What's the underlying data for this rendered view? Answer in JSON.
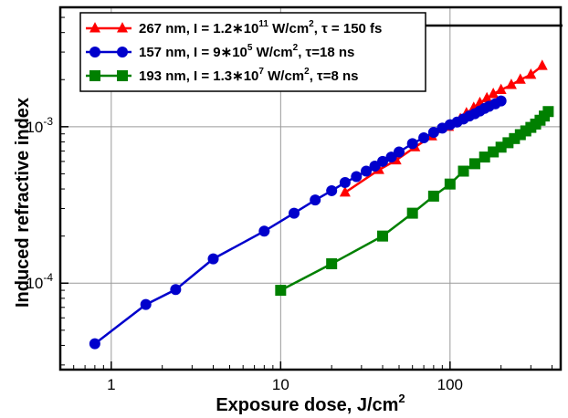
{
  "chart_data": {
    "type": "line",
    "x_scale": "log",
    "y_scale": "log",
    "xlim": [
      0.5,
      450
    ],
    "ylim": [
      2.8e-05,
      0.0058
    ],
    "grid": true,
    "legend_placement": "top",
    "xlabel_main": "Exposure dose, J/cm",
    "xlabel_sup": "2",
    "ylabel": "Induced refractive index",
    "x_ticks": [
      {
        "value": 1,
        "label": "1"
      },
      {
        "value": 10,
        "label": "10"
      },
      {
        "value": 100,
        "label": "100"
      }
    ],
    "y_ticks": [
      {
        "value": 0.0001,
        "base": "10",
        "exp": "-4"
      },
      {
        "value": 0.001,
        "base": "10",
        "exp": "-3"
      }
    ],
    "series": [
      {
        "color": "#ff0000",
        "marker": "triangle",
        "legend_parts": [
          "267 nm, I = 1.2∗10",
          "11",
          " W/cm",
          "2",
          ", τ = 150 fs"
        ],
        "x": [
          24,
          38,
          48,
          62,
          78,
          98,
          115,
          125,
          138,
          150,
          165,
          180,
          200,
          230,
          260,
          300,
          350
        ],
        "y": [
          0.00038,
          0.00053,
          0.00061,
          0.00074,
          0.00087,
          0.001,
          0.00112,
          0.00122,
          0.00132,
          0.00142,
          0.00152,
          0.00162,
          0.00172,
          0.00185,
          0.002,
          0.00215,
          0.00245
        ]
      },
      {
        "color": "#0000cc",
        "marker": "circle",
        "legend_parts": [
          "157 nm, I = 9∗10",
          "5",
          " W/cm",
          "2",
          ", τ=18 ns"
        ],
        "x": [
          0.8,
          1.6,
          2.4,
          4,
          8,
          12,
          16,
          20,
          24,
          28,
          32,
          36,
          40,
          45,
          50,
          60,
          70,
          80,
          90,
          100,
          110,
          120,
          130,
          140,
          150,
          160,
          170,
          185,
          200
        ],
        "y": [
          4.1e-05,
          7.3e-05,
          9.1e-05,
          0.000143,
          0.000215,
          0.00028,
          0.00034,
          0.00039,
          0.00044,
          0.00048,
          0.00052,
          0.00056,
          0.0006,
          0.00064,
          0.00069,
          0.00078,
          0.00085,
          0.00092,
          0.00098,
          0.00103,
          0.00107,
          0.00112,
          0.00117,
          0.00121,
          0.00126,
          0.00131,
          0.00135,
          0.0014,
          0.00146
        ]
      },
      {
        "color": "#008000",
        "marker": "square",
        "legend_parts": [
          "193 nm, I = 1.3∗10",
          "7",
          " W/cm",
          "2",
          ", τ=8 ns"
        ],
        "x": [
          10,
          20,
          40,
          60,
          80,
          100,
          120,
          140,
          160,
          180,
          200,
          220,
          240,
          260,
          280,
          300,
          320,
          340,
          360,
          380
        ],
        "y": [
          9e-05,
          0.000133,
          0.0002,
          0.00028,
          0.00036,
          0.00043,
          0.00052,
          0.00058,
          0.00064,
          0.00069,
          0.00074,
          0.00079,
          0.00084,
          0.00089,
          0.00094,
          0.00099,
          0.00104,
          0.0011,
          0.00117,
          0.00125
        ]
      }
    ]
  }
}
